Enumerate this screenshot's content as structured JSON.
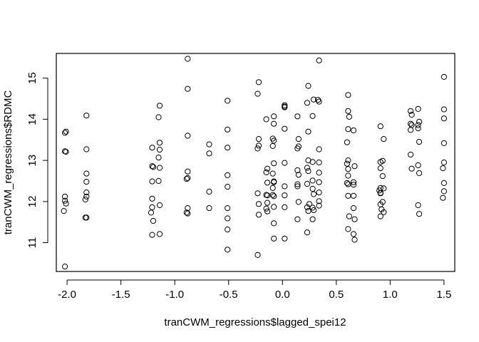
{
  "chart_data": {
    "type": "scatter",
    "title": "",
    "xlabel": "tranCWM_regressions$lagged_spei12",
    "ylabel": "tranCWM_regressions$RDMC",
    "xlim": [
      -2.1,
      1.6
    ],
    "ylim": [
      10.3,
      15.6
    ],
    "x_ticks": [
      -2.0,
      -1.5,
      -1.0,
      -0.5,
      0.0,
      0.5,
      1.0,
      1.5
    ],
    "x_tick_labels": [
      "-2.0",
      "-1.5",
      "-1.0",
      "-0.5",
      "0.0",
      "0.5",
      "1.0",
      "1.5"
    ],
    "y_ticks": [
      11,
      12,
      13,
      14,
      15
    ],
    "y_tick_labels": [
      "11",
      "12",
      "13",
      "14",
      "15"
    ],
    "grid": false,
    "marker": "open-circle",
    "points": [
      [
        -2.02,
        13.67
      ],
      [
        -2.01,
        13.7
      ],
      [
        -2.02,
        13.22
      ],
      [
        -2.01,
        13.21
      ],
      [
        -2.02,
        12.12
      ],
      [
        -2.02,
        12.02
      ],
      [
        -2.01,
        11.95
      ],
      [
        -2.03,
        11.77
      ],
      [
        -2.02,
        10.42
      ],
      [
        -1.82,
        14.09
      ],
      [
        -1.82,
        13.27
      ],
      [
        -1.82,
        12.68
      ],
      [
        -1.82,
        12.48
      ],
      [
        -1.82,
        12.22
      ],
      [
        -1.82,
        12.12
      ],
      [
        -1.83,
        12.05
      ],
      [
        -1.82,
        11.61
      ],
      [
        -1.83,
        11.61
      ],
      [
        -1.21,
        13.31
      ],
      [
        -1.21,
        12.86
      ],
      [
        -1.2,
        12.84
      ],
      [
        -1.21,
        12.49
      ],
      [
        -1.21,
        12.07
      ],
      [
        -1.21,
        11.86
      ],
      [
        -1.22,
        11.73
      ],
      [
        -1.2,
        11.53
      ],
      [
        -1.21,
        11.19
      ],
      [
        -1.14,
        14.33
      ],
      [
        -1.15,
        14.05
      ],
      [
        -1.14,
        13.43
      ],
      [
        -1.14,
        13.26
      ],
      [
        -1.15,
        13.07
      ],
      [
        -1.14,
        12.82
      ],
      [
        -1.15,
        12.5
      ],
      [
        -1.14,
        11.91
      ],
      [
        -1.14,
        11.21
      ],
      [
        -0.88,
        15.47
      ],
      [
        -0.88,
        14.74
      ],
      [
        -0.88,
        13.6
      ],
      [
        -0.88,
        12.73
      ],
      [
        -0.88,
        12.57
      ],
      [
        -0.89,
        12.55
      ],
      [
        -0.88,
        11.84
      ],
      [
        -0.89,
        11.73
      ],
      [
        -0.88,
        11.71
      ],
      [
        -0.68,
        13.39
      ],
      [
        -0.68,
        13.17
      ],
      [
        -0.68,
        12.24
      ],
      [
        -0.68,
        11.84
      ],
      [
        -0.51,
        14.45
      ],
      [
        -0.51,
        13.75
      ],
      [
        -0.51,
        13.31
      ],
      [
        -0.51,
        12.64
      ],
      [
        -0.51,
        12.36
      ],
      [
        -0.51,
        11.84
      ],
      [
        -0.51,
        11.59
      ],
      [
        -0.51,
        11.32
      ],
      [
        -0.51,
        10.83
      ],
      [
        -0.22,
        14.9
      ],
      [
        -0.23,
        14.62
      ],
      [
        -0.22,
        13.52
      ],
      [
        -0.22,
        13.36
      ],
      [
        -0.23,
        13.29
      ],
      [
        -0.23,
        12.2
      ],
      [
        -0.22,
        11.94
      ],
      [
        -0.22,
        11.68
      ],
      [
        -0.23,
        10.7
      ],
      [
        -0.15,
        14.0
      ],
      [
        -0.14,
        12.8
      ],
      [
        -0.15,
        12.71
      ],
      [
        -0.14,
        12.46
      ],
      [
        -0.15,
        12.16
      ],
      [
        -0.14,
        12.15
      ],
      [
        -0.14,
        11.97
      ],
      [
        -0.15,
        11.83
      ],
      [
        -0.14,
        11.76
      ],
      [
        -0.08,
        14.07
      ],
      [
        -0.08,
        13.89
      ],
      [
        -0.09,
        13.53
      ],
      [
        -0.08,
        13.48
      ],
      [
        -0.09,
        13.35
      ],
      [
        -0.08,
        12.93
      ],
      [
        -0.09,
        12.68
      ],
      [
        -0.08,
        12.49
      ],
      [
        -0.08,
        12.47
      ],
      [
        -0.09,
        12.33
      ],
      [
        -0.09,
        12.16
      ],
      [
        -0.08,
        12.13
      ],
      [
        -0.08,
        11.87
      ],
      [
        -0.08,
        11.47
      ],
      [
        -0.08,
        11.1
      ],
      [
        0.02,
        14.34
      ],
      [
        0.02,
        14.31
      ],
      [
        0.02,
        14.29
      ],
      [
        0.02,
        13.77
      ],
      [
        0.02,
        12.94
      ],
      [
        0.02,
        12.37
      ],
      [
        0.02,
        12.15
      ],
      [
        0.02,
        11.86
      ],
      [
        0.02,
        11.1
      ],
      [
        0.14,
        14.07
      ],
      [
        0.15,
        13.52
      ],
      [
        0.15,
        13.34
      ],
      [
        0.14,
        13.29
      ],
      [
        0.14,
        12.76
      ],
      [
        0.15,
        12.65
      ],
      [
        0.14,
        12.42
      ],
      [
        0.14,
        12.37
      ],
      [
        0.15,
        11.99
      ],
      [
        0.14,
        11.57
      ],
      [
        0.24,
        14.81
      ],
      [
        0.23,
        14.4
      ],
      [
        0.24,
        13.7
      ],
      [
        0.24,
        13.0
      ],
      [
        0.23,
        12.82
      ],
      [
        0.24,
        12.74
      ],
      [
        0.23,
        12.43
      ],
      [
        0.25,
        11.94
      ],
      [
        0.23,
        11.86
      ],
      [
        0.24,
        11.77
      ],
      [
        0.23,
        11.25
      ],
      [
        0.29,
        14.48
      ],
      [
        0.28,
        14.08
      ],
      [
        0.28,
        12.96
      ],
      [
        0.28,
        12.51
      ],
      [
        0.28,
        12.31
      ],
      [
        0.29,
        12.18
      ],
      [
        0.28,
        11.85
      ],
      [
        0.29,
        11.79
      ],
      [
        0.28,
        11.57
      ],
      [
        0.34,
        15.43
      ],
      [
        0.33,
        14.47
      ],
      [
        0.34,
        14.43
      ],
      [
        0.34,
        13.27
      ],
      [
        0.34,
        12.95
      ],
      [
        0.34,
        12.7
      ],
      [
        0.34,
        12.47
      ],
      [
        0.34,
        12.22
      ],
      [
        0.34,
        12.01
      ],
      [
        0.34,
        11.9
      ],
      [
        0.61,
        14.59
      ],
      [
        0.61,
        14.2
      ],
      [
        0.62,
        14.06
      ],
      [
        0.61,
        13.76
      ],
      [
        0.6,
        13.44
      ],
      [
        0.61,
        13.0
      ],
      [
        0.6,
        12.92
      ],
      [
        0.61,
        12.79
      ],
      [
        0.61,
        12.63
      ],
      [
        0.6,
        12.45
      ],
      [
        0.61,
        12.42
      ],
      [
        0.61,
        12.14
      ],
      [
        0.62,
        11.64
      ],
      [
        0.61,
        11.33
      ],
      [
        0.66,
        13.73
      ],
      [
        0.67,
        12.86
      ],
      [
        0.66,
        12.47
      ],
      [
        0.66,
        12.41
      ],
      [
        0.66,
        12.14
      ],
      [
        0.66,
        11.84
      ],
      [
        0.67,
        11.57
      ],
      [
        0.66,
        11.21
      ],
      [
        0.67,
        11.07
      ],
      [
        0.91,
        13.83
      ],
      [
        0.91,
        12.96
      ],
      [
        0.91,
        12.81
      ],
      [
        0.91,
        12.33
      ],
      [
        0.9,
        12.27
      ],
      [
        0.91,
        12.21
      ],
      [
        0.91,
        12.2
      ],
      [
        0.91,
        11.93
      ],
      [
        0.92,
        11.81
      ],
      [
        0.91,
        11.64
      ],
      [
        0.94,
        13.52
      ],
      [
        0.93,
        12.99
      ],
      [
        0.93,
        12.62
      ],
      [
        0.94,
        12.32
      ],
      [
        0.93,
        11.99
      ],
      [
        0.94,
        11.74
      ],
      [
        1.19,
        14.2
      ],
      [
        1.2,
        14.11
      ],
      [
        1.19,
        13.89
      ],
      [
        1.2,
        13.86
      ],
      [
        1.19,
        13.74
      ],
      [
        1.19,
        13.14
      ],
      [
        1.2,
        12.8
      ],
      [
        1.26,
        14.25
      ],
      [
        1.27,
        13.94
      ],
      [
        1.26,
        13.86
      ],
      [
        1.26,
        13.78
      ],
      [
        1.27,
        13.45
      ],
      [
        1.26,
        12.88
      ],
      [
        1.27,
        12.69
      ],
      [
        1.26,
        11.91
      ],
      [
        1.27,
        11.7
      ],
      [
        1.5,
        15.03
      ],
      [
        1.5,
        14.24
      ],
      [
        1.5,
        14.02
      ],
      [
        1.5,
        13.42
      ],
      [
        1.5,
        12.95
      ],
      [
        1.49,
        12.81
      ],
      [
        1.5,
        12.45
      ],
      [
        1.5,
        12.25
      ],
      [
        1.49,
        12.09
      ]
    ]
  }
}
